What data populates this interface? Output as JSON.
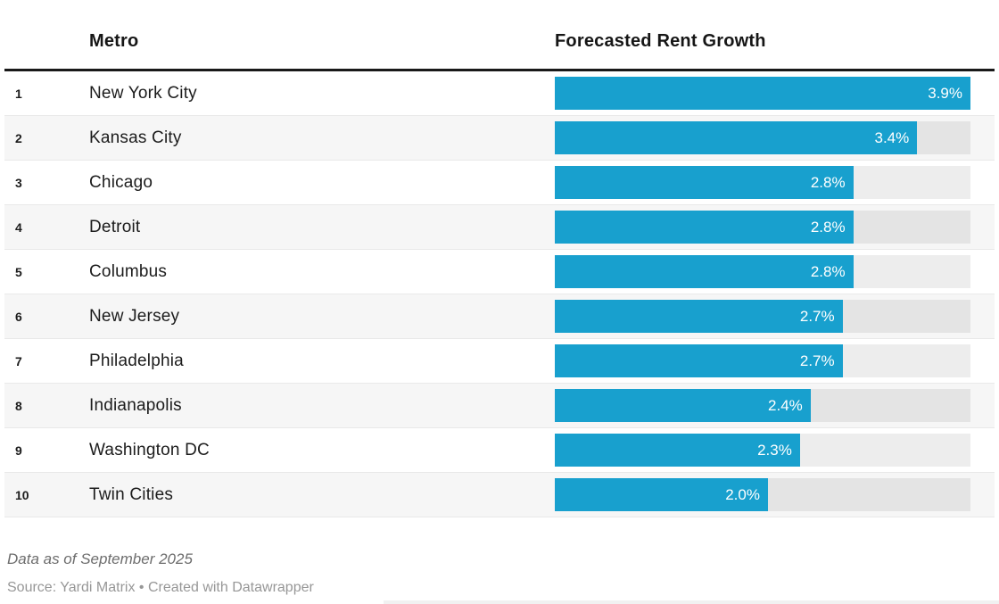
{
  "chart_data": {
    "type": "bar",
    "orientation": "horizontal",
    "columns": {
      "rank": "",
      "metro": "Metro",
      "value": "Forecasted Rent Growth"
    },
    "ranks": [
      "1",
      "2",
      "3",
      "4",
      "5",
      "6",
      "7",
      "8",
      "9",
      "10"
    ],
    "categories": [
      "New York City",
      "Kansas City",
      "Chicago",
      "Detroit",
      "Columbus",
      "New Jersey",
      "Philadelphia",
      "Indianapolis",
      "Washington DC",
      "Twin Cities"
    ],
    "values": [
      3.9,
      3.4,
      2.8,
      2.8,
      2.8,
      2.7,
      2.7,
      2.4,
      2.3,
      2.0
    ],
    "value_labels": [
      "3.9%",
      "3.4%",
      "2.8%",
      "2.8%",
      "2.8%",
      "2.7%",
      "2.7%",
      "2.4%",
      "2.3%",
      "2.0%"
    ],
    "title": "",
    "xlabel": "",
    "ylabel": "",
    "xlim": [
      0,
      3.9
    ],
    "grid": false,
    "legend": false,
    "zebra_striping": true,
    "notes": "Data as of September 2025",
    "source": "Source: Yardi Matrix • Created with Datawrapper"
  },
  "colors": {
    "bar": "#18a0ce",
    "track": "rgba(0,0,0,0.07)",
    "stripe": "#f6f6f6",
    "rule": "#191919"
  }
}
